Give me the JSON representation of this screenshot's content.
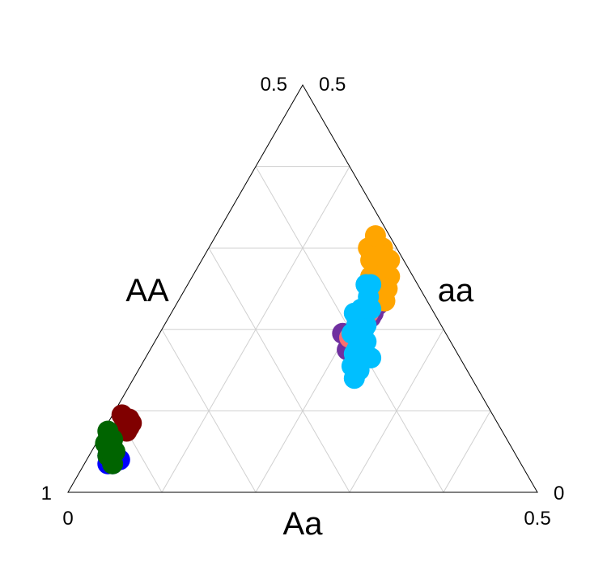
{
  "chart_data": {
    "type": "ternary-scatter",
    "axes": {
      "left": {
        "label": "AA",
        "tick_start": "1",
        "tick_end": "0.5"
      },
      "bottom": {
        "label": "Aa",
        "tick_start": "0",
        "tick_end": "0.5"
      },
      "right": {
        "label": "aa",
        "tick_start": "0.5",
        "tick_end": "0"
      }
    },
    "grid": true,
    "series": [
      {
        "color": "#0000ff",
        "points": [
          [
            0.87,
            0.07
          ],
          [
            0.86,
            0.1
          ],
          [
            0.87,
            0.09
          ],
          [
            0.88,
            0.07
          ],
          [
            0.86,
            0.08
          ],
          [
            0.87,
            0.08
          ],
          [
            0.85,
            0.08
          ]
        ]
      },
      {
        "color": "#800000",
        "points": [
          [
            0.79,
            0.18
          ],
          [
            0.78,
            0.17
          ],
          [
            0.79,
            0.17
          ],
          [
            0.79,
            0.19
          ],
          [
            0.78,
            0.18
          ],
          [
            0.79,
            0.16
          ],
          [
            0.8,
            0.15
          ]
        ]
      },
      {
        "color": "#006400",
        "points": [
          [
            0.86,
            0.09
          ],
          [
            0.85,
            0.1
          ],
          [
            0.87,
            0.07
          ],
          [
            0.85,
            0.11
          ],
          [
            0.84,
            0.13
          ],
          [
            0.86,
            0.11
          ],
          [
            0.87,
            0.09
          ],
          [
            0.86,
            0.1
          ],
          [
            0.85,
            0.13
          ],
          [
            0.84,
            0.15
          ],
          [
            0.86,
            0.12
          ]
        ]
      },
      {
        "color": "#7030a0",
        "points": [
          [
            0.23,
            0.32
          ],
          [
            0.22,
            0.34
          ],
          [
            0.23,
            0.35
          ],
          [
            0.2,
            0.38
          ],
          [
            0.19,
            0.38
          ],
          [
            0.22,
            0.39
          ],
          [
            0.17,
            0.43
          ],
          [
            0.14,
            0.43
          ],
          [
            0.15,
            0.44
          ],
          [
            0.13,
            0.44
          ],
          [
            0.11,
            0.48
          ],
          [
            0.11,
            0.46
          ]
        ]
      },
      {
        "color": "#fa7070",
        "points": [
          [
            0.21,
            0.38
          ],
          [
            0.13,
            0.46
          ],
          [
            0.1,
            0.48
          ],
          [
            0.09,
            0.49
          ],
          [
            0.14,
            0.44
          ],
          [
            0.12,
            0.46
          ]
        ]
      },
      {
        "color": "#ffa500",
        "points": [
          [
            0.09,
            0.47
          ],
          [
            0.08,
            0.53
          ],
          [
            0.07,
            0.57
          ],
          [
            0.06,
            0.59
          ],
          [
            0.06,
            0.6
          ],
          [
            0.03,
            0.6
          ],
          [
            0.05,
            0.53
          ],
          [
            0.07,
            0.5
          ],
          [
            0.08,
            0.51
          ],
          [
            0.09,
            0.53
          ],
          [
            0.05,
            0.58
          ],
          [
            0.03,
            0.63
          ],
          [
            0.05,
            0.57
          ],
          [
            0.06,
            0.55
          ],
          [
            0.04,
            0.58
          ],
          [
            0.03,
            0.57
          ],
          [
            0.1,
            0.49
          ],
          [
            0.09,
            0.48
          ]
        ]
      },
      {
        "color": "#00bfff",
        "points": [
          [
            0.25,
            0.28
          ],
          [
            0.23,
            0.3
          ],
          [
            0.22,
            0.34
          ],
          [
            0.19,
            0.37
          ],
          [
            0.18,
            0.41
          ],
          [
            0.17,
            0.44
          ],
          [
            0.14,
            0.45
          ],
          [
            0.12,
            0.48
          ],
          [
            0.11,
            0.51
          ],
          [
            0.1,
            0.51
          ],
          [
            0.18,
            0.37
          ],
          [
            0.16,
            0.41
          ],
          [
            0.15,
            0.45
          ],
          [
            0.2,
            0.39
          ],
          [
            0.21,
            0.35
          ],
          [
            0.13,
            0.45
          ],
          [
            0.17,
            0.4
          ],
          [
            0.24,
            0.31
          ],
          [
            0.19,
            0.33
          ]
        ]
      }
    ]
  }
}
